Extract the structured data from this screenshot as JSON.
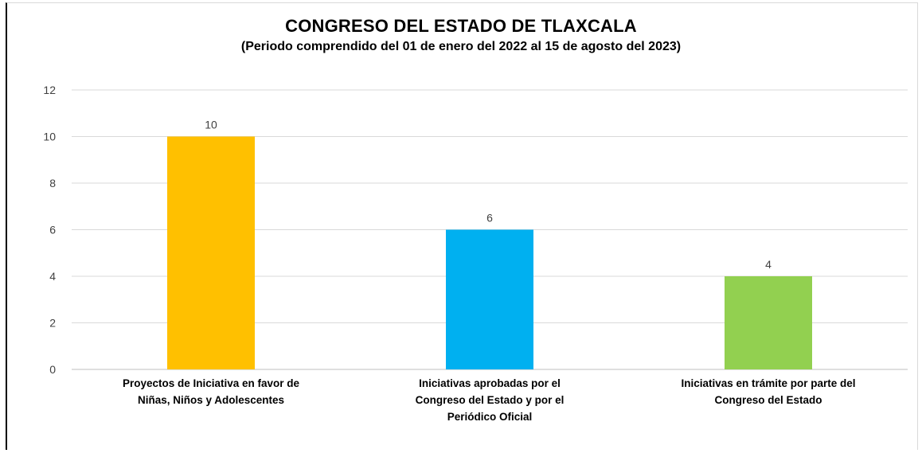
{
  "chart_data": {
    "type": "bar",
    "title": "CONGRESO DEL ESTADO DE TLAXCALA",
    "subtitle": "(Periodo comprendido del 01 de enero del 2022 al 15 de agosto del 2023)",
    "categories": [
      [
        "Proyectos de Iniciativa en favor de",
        "Niñas, Niños y Adolescentes"
      ],
      [
        "Iniciativas aprobadas por el",
        "Congreso del Estado y por el",
        "Periódico Oficial"
      ],
      [
        "Iniciativas en trámite por parte del",
        "Congreso del Estado"
      ]
    ],
    "values": [
      10,
      6,
      4
    ],
    "colors": [
      "#FFC000",
      "#00B0F0",
      "#92D050"
    ],
    "ylim": [
      0,
      12
    ],
    "yticks": [
      0,
      2,
      4,
      6,
      8,
      10,
      12
    ],
    "grid": true,
    "data_labels": true,
    "xlabel": "",
    "ylabel": ""
  }
}
